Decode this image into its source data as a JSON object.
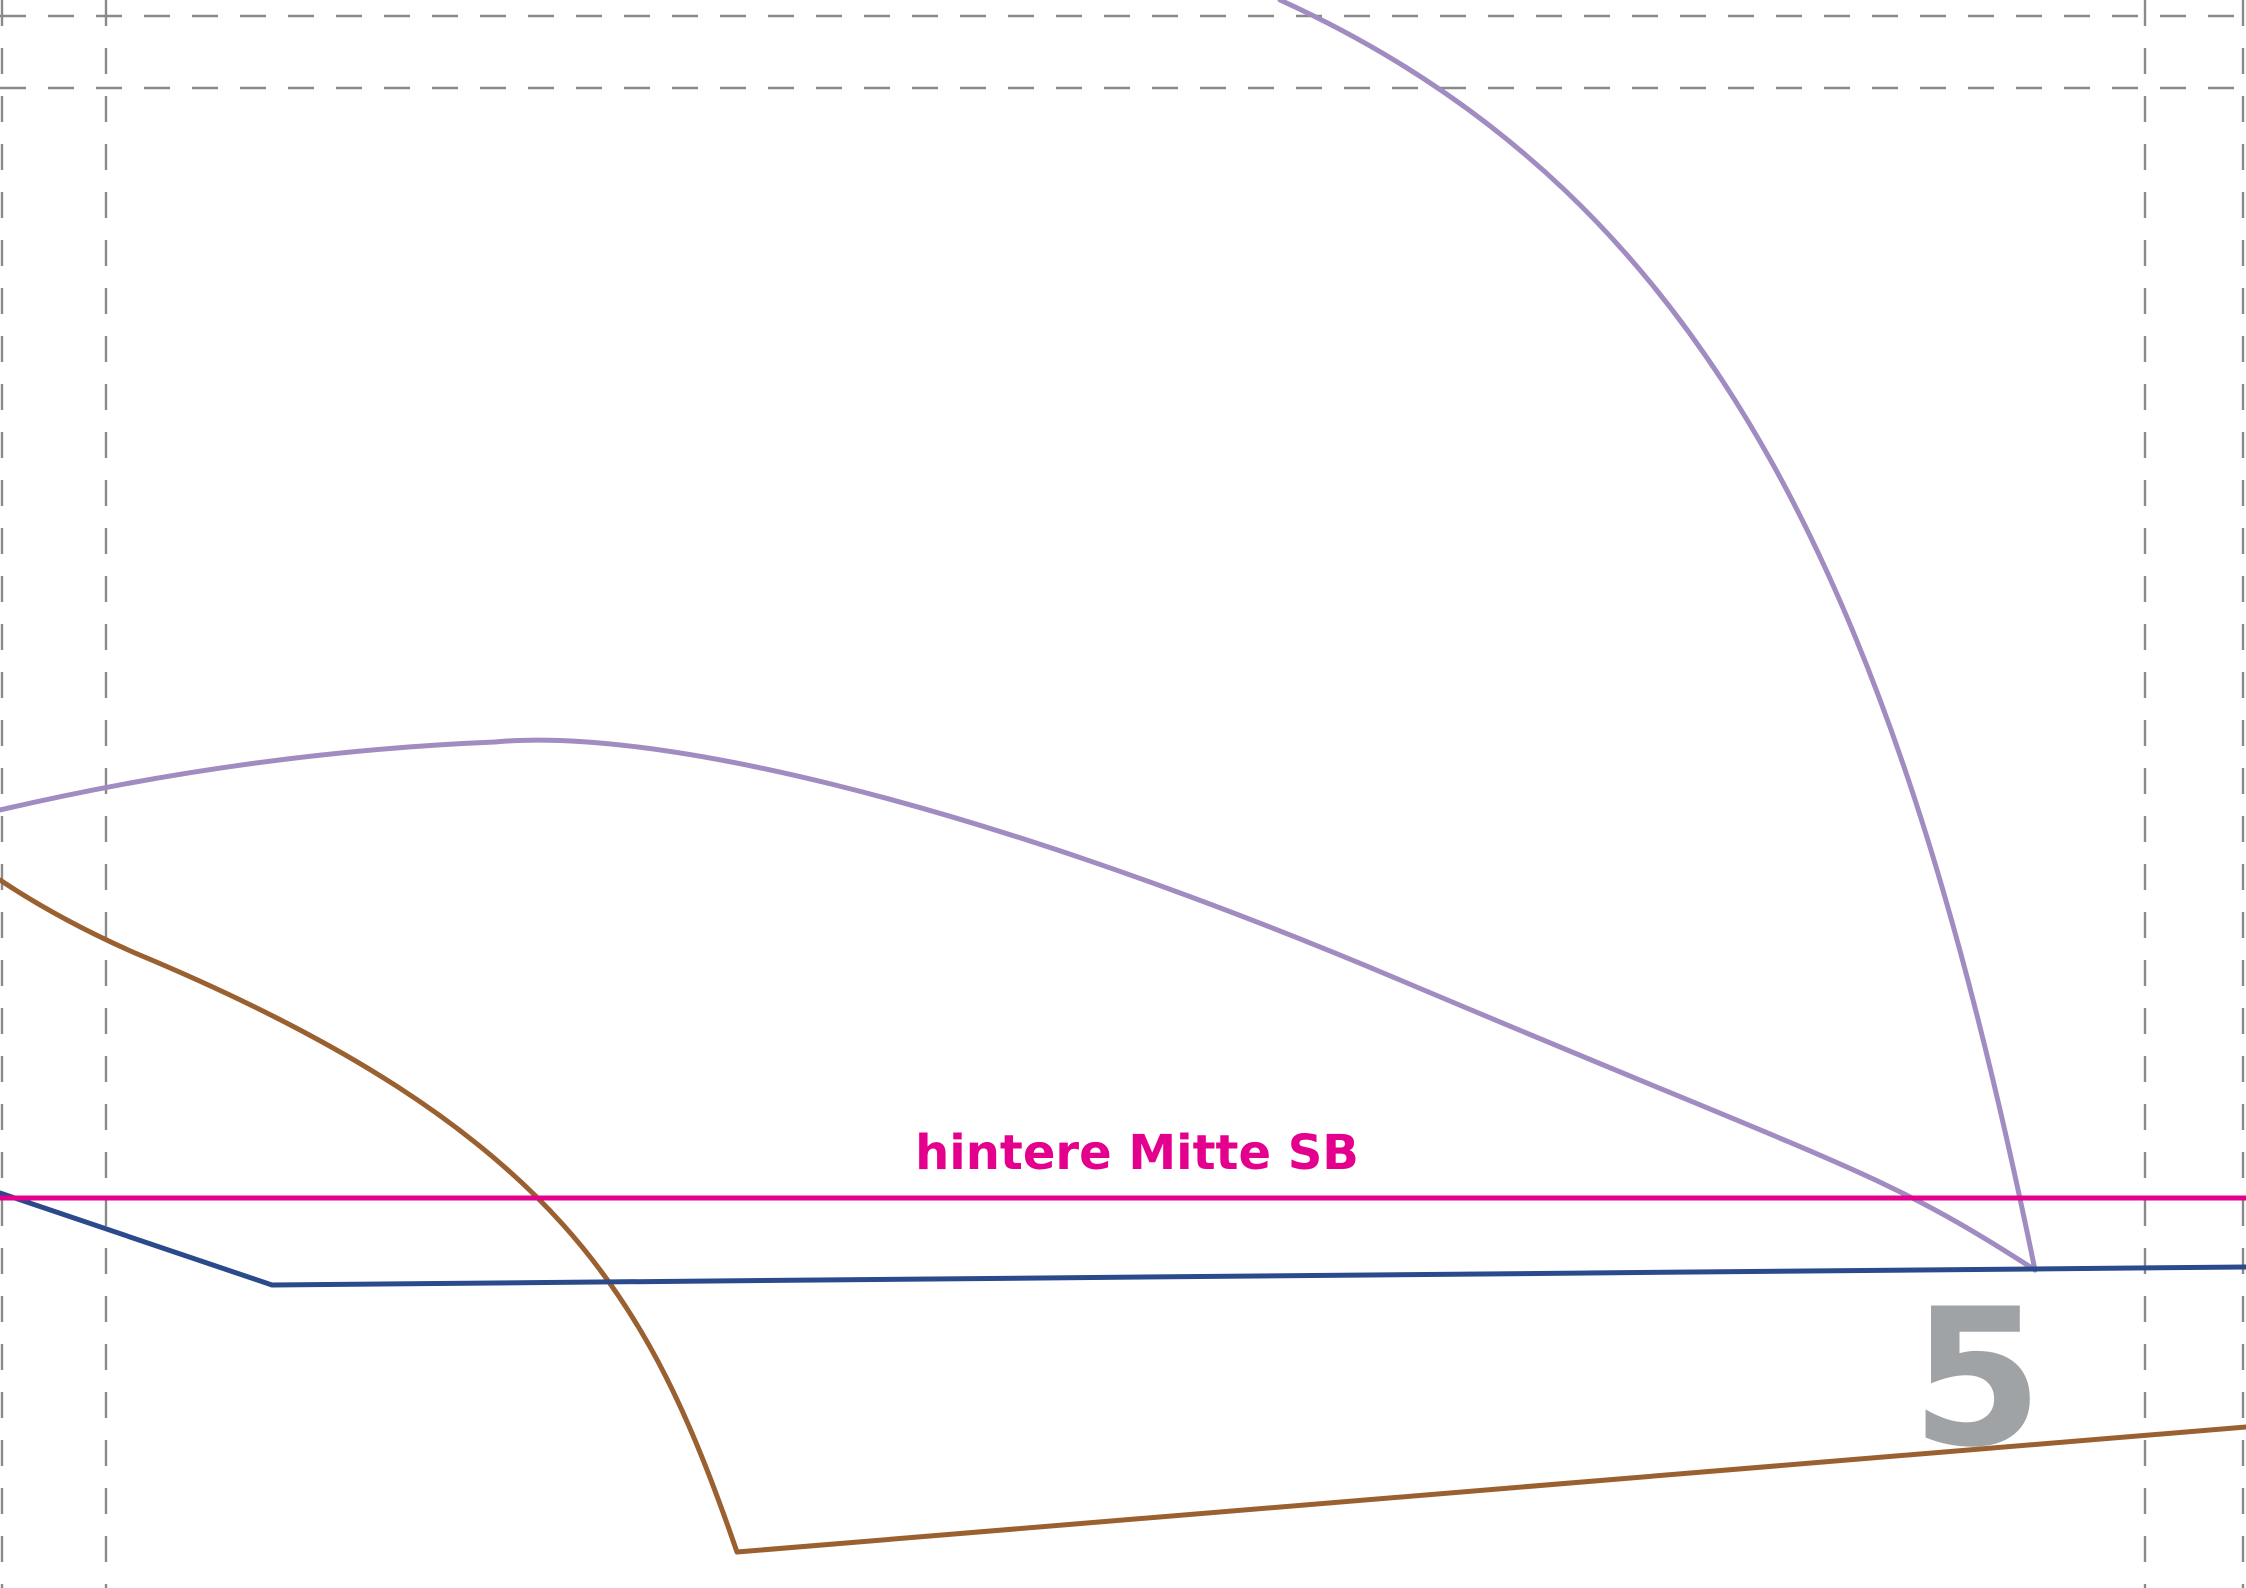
{
  "sheet": {
    "label": "hintere Mitte SB",
    "page_number": "5"
  },
  "colors": {
    "background": "#ffffff",
    "guide": "#8a8a8a",
    "label": "#e4008c",
    "center_line": "#e4008c",
    "lavender_outline": "#a08cc0",
    "navy_outline": "#2b4a8c",
    "brown_outline": "#9a6030",
    "page_number": "#a0a3a6"
  }
}
